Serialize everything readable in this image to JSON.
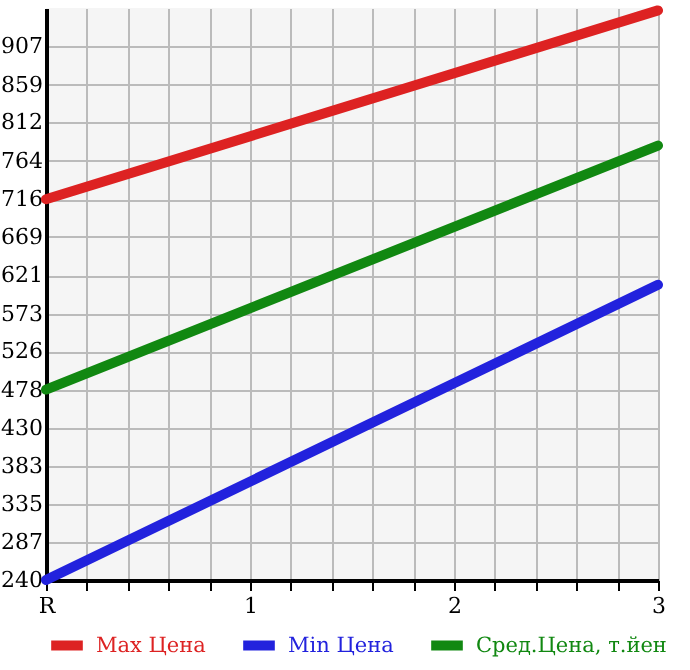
{
  "chart_data": {
    "type": "line",
    "x": [
      0,
      3
    ],
    "series": [
      {
        "name": "Max Цена",
        "color": "#dd2222",
        "values": [
          716,
          952
        ]
      },
      {
        "name": "Min Цена",
        "color": "#2222dd",
        "values": [
          240,
          609
        ]
      },
      {
        "name": "Сред.Цена, т.йен",
        "color": "#118811",
        "values": [
          478,
          783
        ]
      }
    ],
    "xlim": [
      0,
      3
    ],
    "xticks": [
      {
        "value": 0,
        "label": "R"
      },
      {
        "value": 0.2,
        "label": null
      },
      {
        "value": 0.4,
        "label": null
      },
      {
        "value": 0.6,
        "label": null
      },
      {
        "value": 0.8,
        "label": null
      },
      1,
      {
        "value": 1.2,
        "label": null
      },
      {
        "value": 1.4,
        "label": null
      },
      {
        "value": 1.6,
        "label": null
      },
      {
        "value": 1.8,
        "label": null
      },
      2,
      {
        "value": 2.2,
        "label": null
      },
      {
        "value": 2.4,
        "label": null
      },
      {
        "value": 2.6,
        "label": null
      },
      {
        "value": 2.8,
        "label": null
      },
      3
    ],
    "ylim": [
      240,
      955
    ],
    "yticks": [
      240,
      287,
      335,
      383,
      430,
      478,
      526,
      573,
      621,
      669,
      716,
      764,
      812,
      859,
      907
    ],
    "grid": true,
    "legend": "bottom",
    "marker": "none",
    "line_style": "solid"
  }
}
